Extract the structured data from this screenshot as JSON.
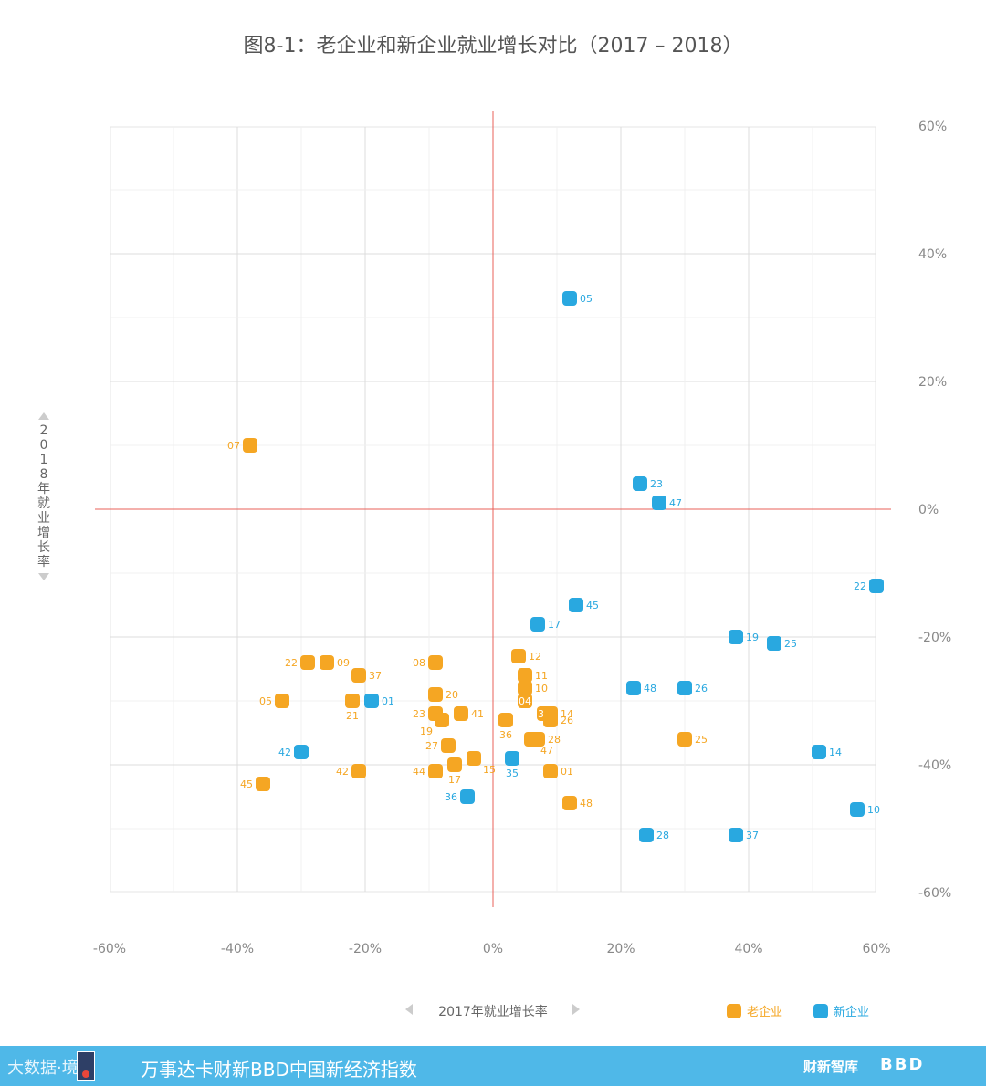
{
  "title": "图8-1：老企业和新企业就业增长对比（2017 – 2018）",
  "footer": {
    "logo_text": "大数据·境",
    "title": "万事达卡财新BBD中国新经济指数",
    "brand": "财新智库",
    "bbd": "BBD"
  },
  "chart_data": {
    "type": "scatter",
    "title": "图8-1：老企业和新企业就业增长对比（2017 – 2018）",
    "xlabel": "2017年就业增长率",
    "ylabel": "2018年就业增长率",
    "xlim": [
      -60,
      60
    ],
    "ylim": [
      -60,
      60
    ],
    "x_ticks": [
      "-60%",
      "-40%",
      "-20%",
      "0%",
      "20%",
      "40%",
      "60%"
    ],
    "y_ticks": [
      "60%",
      "40%",
      "20%",
      "0%",
      "-20%",
      "-40%",
      "-60%"
    ],
    "grid": true,
    "legend_position": "bottom-right",
    "colors": {
      "old": "#f5a623",
      "new": "#29a8e0",
      "axis_zero": "#e8605a",
      "grid": "#e4e4e4"
    },
    "series": [
      {
        "name": "老企业",
        "key": "old",
        "points": [
          {
            "label": "07",
            "x": -38,
            "y": 10
          },
          {
            "label": "22",
            "x": -29,
            "y": -24
          },
          {
            "label": "09",
            "x": -26,
            "y": -24
          },
          {
            "label": "37",
            "x": -21,
            "y": -26
          },
          {
            "label": "05",
            "x": -33,
            "y": -30
          },
          {
            "label": "21",
            "x": -22,
            "y": -30
          },
          {
            "label": "42",
            "x": -21,
            "y": -41
          },
          {
            "label": "45",
            "x": -36,
            "y": -43
          },
          {
            "label": "08",
            "x": -9,
            "y": -24
          },
          {
            "label": "20",
            "x": -9,
            "y": -29
          },
          {
            "label": "23",
            "x": -9,
            "y": -32
          },
          {
            "label": "19",
            "x": -8,
            "y": -33
          },
          {
            "label": "41",
            "x": -5,
            "y": -32
          },
          {
            "label": "27",
            "x": -7,
            "y": -37
          },
          {
            "label": "44",
            "x": -9,
            "y": -41
          },
          {
            "label": "17",
            "x": -6,
            "y": -40
          },
          {
            "label": "15",
            "x": -3,
            "y": -39
          },
          {
            "label": "12",
            "x": 4,
            "y": -23
          },
          {
            "label": "11",
            "x": 5,
            "y": -26
          },
          {
            "label": "10",
            "x": 5,
            "y": -28
          },
          {
            "label": "04",
            "x": 5,
            "y": -30
          },
          {
            "label": "35",
            "x": 8,
            "y": -32
          },
          {
            "label": "14",
            "x": 9,
            "y": -32
          },
          {
            "label": "26",
            "x": 9,
            "y": -33
          },
          {
            "label": "36",
            "x": 2,
            "y": -33
          },
          {
            "label": "47",
            "x": 6,
            "y": -36
          },
          {
            "label": "28",
            "x": 7,
            "y": -36
          },
          {
            "label": "01",
            "x": 9,
            "y": -41
          },
          {
            "label": "48",
            "x": 12,
            "y": -46
          },
          {
            "label": "25",
            "x": 30,
            "y": -36
          }
        ]
      },
      {
        "name": "新企业",
        "key": "new",
        "points": [
          {
            "label": "05",
            "x": 12,
            "y": 33
          },
          {
            "label": "23",
            "x": 23,
            "y": 4
          },
          {
            "label": "47",
            "x": 26,
            "y": 1
          },
          {
            "label": "22",
            "x": 60,
            "y": -12
          },
          {
            "label": "45",
            "x": 13,
            "y": -15
          },
          {
            "label": "17",
            "x": 7,
            "y": -18
          },
          {
            "label": "19",
            "x": 38,
            "y": -20
          },
          {
            "label": "41",
            "x": 44,
            "y": -21
          },
          {
            "label": "25",
            "x": 44,
            "y": -21
          },
          {
            "label": "48",
            "x": 22,
            "y": -28
          },
          {
            "label": "27",
            "x": 30,
            "y": -28
          },
          {
            "label": "26",
            "x": 30,
            "y": -28
          },
          {
            "label": "01",
            "x": -19,
            "y": -30
          },
          {
            "label": "42",
            "x": -30,
            "y": -38
          },
          {
            "label": "14",
            "x": 51,
            "y": -38
          },
          {
            "label": "35",
            "x": 3,
            "y": -39
          },
          {
            "label": "36",
            "x": -4,
            "y": -45
          },
          {
            "label": "10",
            "x": 57,
            "y": -47
          },
          {
            "label": "28",
            "x": 24,
            "y": -51
          },
          {
            "label": "37",
            "x": 38,
            "y": -51
          }
        ]
      }
    ],
    "inside_labels": {
      "new": [
        "41",
        "27"
      ],
      "old": [
        "04",
        "35"
      ]
    },
    "label_sides": {
      "old": {
        "07": "left",
        "22": "left",
        "05": "left",
        "45": "left",
        "42": "left",
        "44": "left",
        "23": "left",
        "08": "left",
        "27": "left",
        "21": "below",
        "19": "below-left",
        "36": "below",
        "17": "below",
        "15": "below-right",
        "47": "below-right"
      },
      "new": {
        "22": "left",
        "42": "left",
        "36": "left",
        "35": "below"
      }
    }
  }
}
